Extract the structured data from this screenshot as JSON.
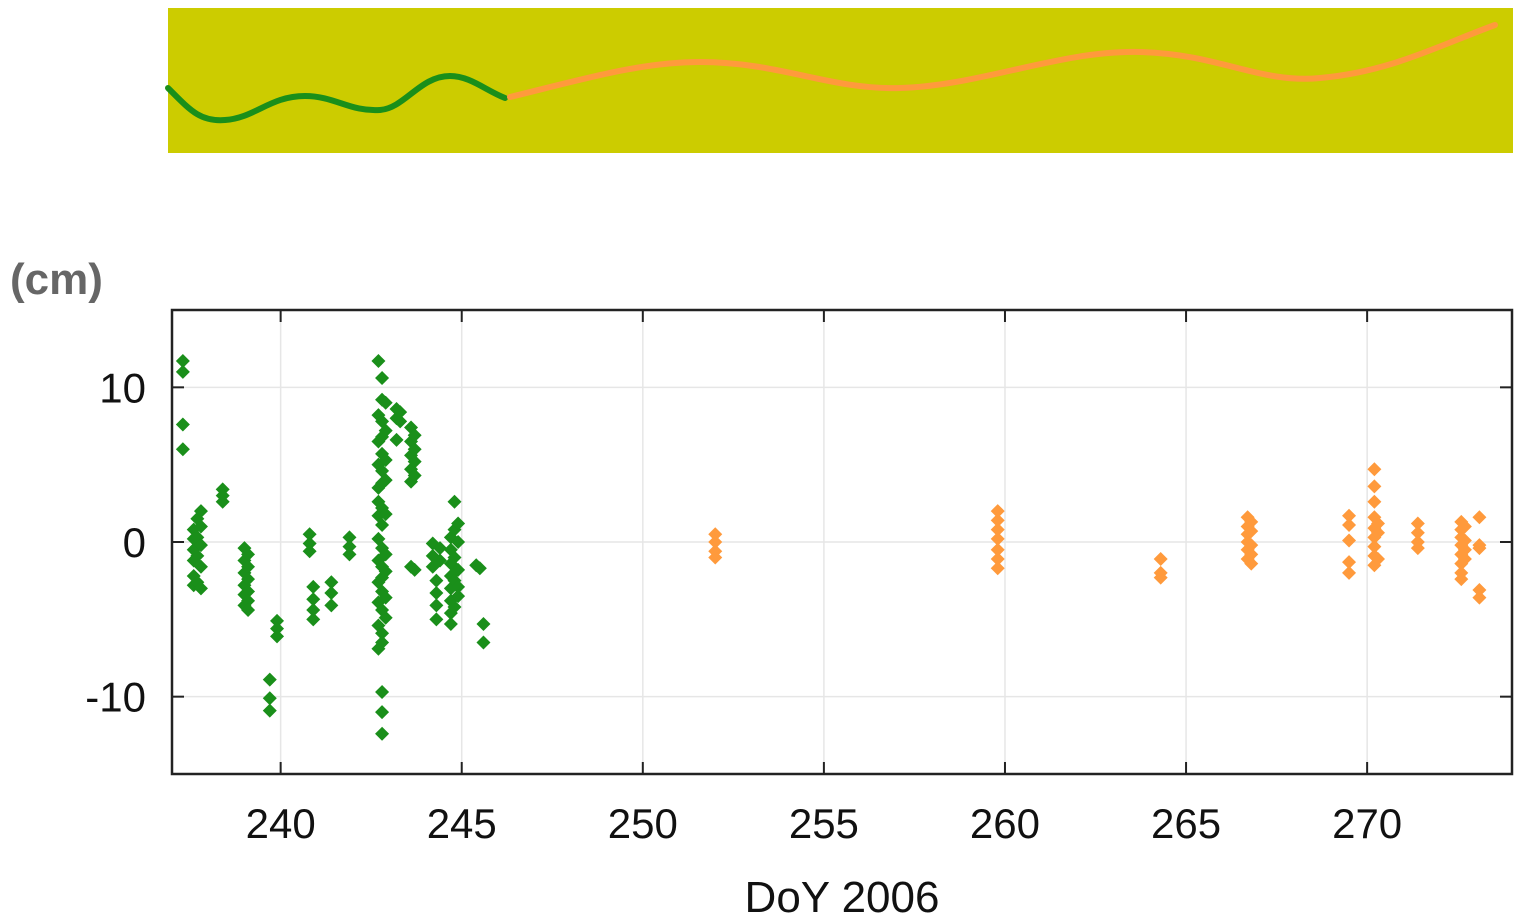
{
  "colors": {
    "banner_background": "#cccc00",
    "series_green": "#1a8f1a",
    "series_orange": "#ff9a3c",
    "grid": "#e6e6e6",
    "frame": "#222222"
  },
  "chart_data": {
    "type": "scatter",
    "title": "",
    "xlabel": "DoY 2006",
    "ylabel": "(cm)",
    "xlim": [
      237,
      274
    ],
    "ylim": [
      -15,
      15
    ],
    "xticks": [
      240,
      245,
      250,
      255,
      260,
      265,
      270
    ],
    "yticks": [
      -10,
      0,
      10
    ],
    "xtick_labels": [
      "240",
      "245",
      "250",
      "255",
      "260",
      "265",
      "270"
    ],
    "ytick_labels": [
      "-10",
      "0",
      "10"
    ],
    "grid": true,
    "legend": "none",
    "marker": "diamond",
    "series": [
      {
        "color": "#1a8f1a",
        "points": [
          [
            237.3,
            11.7
          ],
          [
            237.3,
            11.0
          ],
          [
            237.3,
            7.6
          ],
          [
            237.3,
            6.0
          ],
          [
            237.6,
            0.8
          ],
          [
            237.6,
            0.2
          ],
          [
            237.6,
            -0.5
          ],
          [
            237.6,
            -1.2
          ],
          [
            237.6,
            -2.2
          ],
          [
            237.6,
            -2.8
          ],
          [
            237.7,
            1.5
          ],
          [
            237.7,
            0.3
          ],
          [
            237.7,
            -0.9
          ],
          [
            237.7,
            -2.6
          ],
          [
            237.8,
            2.0
          ],
          [
            237.8,
            1.0
          ],
          [
            237.8,
            -0.2
          ],
          [
            237.8,
            -1.6
          ],
          [
            237.8,
            -3.0
          ],
          [
            238.4,
            3.4
          ],
          [
            238.4,
            3.0
          ],
          [
            238.4,
            2.6
          ],
          [
            239.0,
            -0.4
          ],
          [
            239.0,
            -1.2
          ],
          [
            239.0,
            -2.0
          ],
          [
            239.0,
            -2.8
          ],
          [
            239.0,
            -3.4
          ],
          [
            239.0,
            -4.1
          ],
          [
            239.1,
            -0.8
          ],
          [
            239.1,
            -1.6
          ],
          [
            239.1,
            -2.4
          ],
          [
            239.1,
            -3.2
          ],
          [
            239.1,
            -3.8
          ],
          [
            239.1,
            -4.4
          ],
          [
            239.7,
            -8.9
          ],
          [
            239.7,
            -10.1
          ],
          [
            239.7,
            -10.9
          ],
          [
            239.9,
            -5.1
          ],
          [
            239.9,
            -5.6
          ],
          [
            239.9,
            -6.1
          ],
          [
            240.8,
            0.5
          ],
          [
            240.8,
            -0.1
          ],
          [
            240.8,
            -0.6
          ],
          [
            240.9,
            -2.9
          ],
          [
            240.9,
            -3.7
          ],
          [
            240.9,
            -4.4
          ],
          [
            240.9,
            -5.0
          ],
          [
            241.4,
            -2.6
          ],
          [
            241.4,
            -3.3
          ],
          [
            241.4,
            -4.1
          ],
          [
            241.9,
            0.3
          ],
          [
            241.9,
            -0.3
          ],
          [
            241.9,
            -0.8
          ],
          [
            242.7,
            11.7
          ],
          [
            242.7,
            8.2
          ],
          [
            242.7,
            6.5
          ],
          [
            242.7,
            5.0
          ],
          [
            242.7,
            3.5
          ],
          [
            242.7,
            2.6
          ],
          [
            242.7,
            1.7
          ],
          [
            242.7,
            0.2
          ],
          [
            242.7,
            -1.2
          ],
          [
            242.7,
            -2.6
          ],
          [
            242.7,
            -3.9
          ],
          [
            242.7,
            -5.4
          ],
          [
            242.7,
            -6.9
          ],
          [
            242.8,
            10.6
          ],
          [
            242.8,
            9.2
          ],
          [
            242.8,
            7.8
          ],
          [
            242.8,
            6.8
          ],
          [
            242.8,
            5.7
          ],
          [
            242.8,
            4.6
          ],
          [
            242.8,
            3.8
          ],
          [
            242.8,
            2.2
          ],
          [
            242.8,
            1.1
          ],
          [
            242.8,
            -0.4
          ],
          [
            242.8,
            -1.6
          ],
          [
            242.8,
            -2.3
          ],
          [
            242.8,
            -3.2
          ],
          [
            242.8,
            -4.4
          ],
          [
            242.8,
            -5.9
          ],
          [
            242.8,
            -6.5
          ],
          [
            242.8,
            -9.7
          ],
          [
            242.8,
            -11.0
          ],
          [
            242.8,
            -12.4
          ],
          [
            242.9,
            9.0
          ],
          [
            242.9,
            7.2
          ],
          [
            242.9,
            5.3
          ],
          [
            242.9,
            4.0
          ],
          [
            242.9,
            1.8
          ],
          [
            242.9,
            -0.8
          ],
          [
            242.9,
            -1.9
          ],
          [
            242.9,
            -3.6
          ],
          [
            242.9,
            -4.9
          ],
          [
            243.2,
            8.6
          ],
          [
            243.2,
            8.0
          ],
          [
            243.2,
            6.6
          ],
          [
            243.3,
            8.4
          ],
          [
            243.3,
            7.8
          ],
          [
            243.6,
            7.4
          ],
          [
            243.6,
            6.5
          ],
          [
            243.6,
            5.6
          ],
          [
            243.6,
            4.7
          ],
          [
            243.6,
            3.9
          ],
          [
            243.6,
            -1.6
          ],
          [
            243.7,
            6.9
          ],
          [
            243.7,
            6.0
          ],
          [
            243.7,
            5.2
          ],
          [
            243.7,
            4.3
          ],
          [
            243.7,
            -1.8
          ],
          [
            244.2,
            -0.1
          ],
          [
            244.2,
            -0.9
          ],
          [
            244.2,
            -1.6
          ],
          [
            244.3,
            -2.5
          ],
          [
            244.3,
            -3.3
          ],
          [
            244.3,
            -4.1
          ],
          [
            244.3,
            -5.0
          ],
          [
            244.4,
            -0.4
          ],
          [
            244.4,
            -1.2
          ],
          [
            244.7,
            0.3
          ],
          [
            244.7,
            -0.5
          ],
          [
            244.7,
            -1.4
          ],
          [
            244.7,
            -2.2
          ],
          [
            244.7,
            -3.0
          ],
          [
            244.7,
            -3.8
          ],
          [
            244.7,
            -4.6
          ],
          [
            244.7,
            -5.3
          ],
          [
            244.8,
            2.6
          ],
          [
            244.8,
            0.8
          ],
          [
            244.8,
            -1.0
          ],
          [
            244.8,
            -2.5
          ],
          [
            244.8,
            -4.2
          ],
          [
            244.9,
            1.2
          ],
          [
            244.9,
            0.0
          ],
          [
            244.9,
            -1.8
          ],
          [
            244.9,
            -2.9
          ],
          [
            244.9,
            -3.5
          ],
          [
            245.4,
            -1.5
          ],
          [
            245.5,
            -1.7
          ],
          [
            245.6,
            -5.3
          ],
          [
            245.6,
            -6.5
          ]
        ]
      },
      {
        "color": "#ff9a3c",
        "points": [
          [
            252.0,
            0.5
          ],
          [
            252.0,
            0.0
          ],
          [
            252.0,
            -0.6
          ],
          [
            252.0,
            -1.0
          ],
          [
            259.8,
            2.0
          ],
          [
            259.8,
            1.4
          ],
          [
            259.8,
            0.8
          ],
          [
            259.8,
            0.2
          ],
          [
            259.8,
            -0.5
          ],
          [
            259.8,
            -1.1
          ],
          [
            259.8,
            -1.7
          ],
          [
            264.3,
            -1.1
          ],
          [
            264.3,
            -2.0
          ],
          [
            264.3,
            -2.3
          ],
          [
            266.7,
            1.6
          ],
          [
            266.7,
            1.0
          ],
          [
            266.7,
            0.5
          ],
          [
            266.7,
            0.0
          ],
          [
            266.7,
            -0.5
          ],
          [
            266.7,
            -1.1
          ],
          [
            266.8,
            1.3
          ],
          [
            266.8,
            0.7
          ],
          [
            266.8,
            -0.2
          ],
          [
            266.8,
            -0.8
          ],
          [
            266.8,
            -1.4
          ],
          [
            269.5,
            1.7
          ],
          [
            269.5,
            1.1
          ],
          [
            269.5,
            0.1
          ],
          [
            269.5,
            -1.3
          ],
          [
            269.5,
            -2.0
          ],
          [
            270.2,
            4.7
          ],
          [
            270.2,
            3.6
          ],
          [
            270.2,
            2.6
          ],
          [
            270.2,
            1.6
          ],
          [
            270.2,
            0.9
          ],
          [
            270.2,
            0.3
          ],
          [
            270.2,
            -0.3
          ],
          [
            270.2,
            -0.9
          ],
          [
            270.2,
            -1.5
          ],
          [
            270.3,
            1.2
          ],
          [
            270.3,
            0.6
          ],
          [
            270.3,
            -1.1
          ],
          [
            271.4,
            1.2
          ],
          [
            271.4,
            0.6
          ],
          [
            271.4,
            0.0
          ],
          [
            271.4,
            -0.4
          ],
          [
            272.6,
            1.3
          ],
          [
            272.6,
            0.8
          ],
          [
            272.6,
            0.3
          ],
          [
            272.6,
            -0.2
          ],
          [
            272.6,
            -0.8
          ],
          [
            272.6,
            -1.4
          ],
          [
            272.6,
            -2.0
          ],
          [
            272.6,
            -2.4
          ],
          [
            272.7,
            1.0
          ],
          [
            272.7,
            0.1
          ],
          [
            272.7,
            -0.5
          ],
          [
            272.7,
            -1.1
          ],
          [
            273.1,
            1.6
          ],
          [
            273.1,
            -0.2
          ],
          [
            273.1,
            -0.4
          ],
          [
            273.1,
            -3.1
          ],
          [
            273.1,
            -3.6
          ]
        ]
      }
    ]
  }
}
